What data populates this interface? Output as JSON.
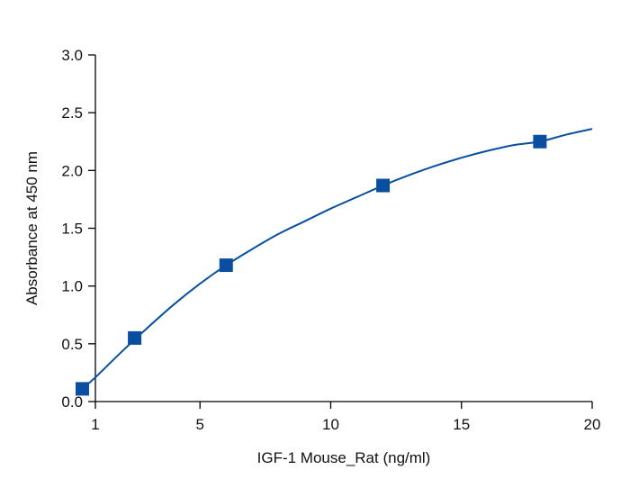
{
  "chart_data": {
    "type": "scatter",
    "title": "",
    "xlabel": "IGF-1 Mouse_Rat (ng/ml)",
    "ylabel": "Absorbance at 450 nm",
    "xlim": [
      1,
      20
    ],
    "ylim": [
      0,
      3.0
    ],
    "xticks": [
      1,
      5,
      10,
      15,
      20
    ],
    "yticks": [
      0.0,
      0.5,
      1.0,
      1.5,
      2.0,
      2.5,
      3.0
    ],
    "xtick_labels": [
      "1",
      "5",
      "10",
      "15",
      "20"
    ],
    "ytick_labels": [
      "0.0",
      "0.5",
      "1.0",
      "1.5",
      "2.0",
      "2.5",
      "3.0"
    ],
    "grid": false,
    "legend": "none",
    "marker_color": "#0a4f9f",
    "line_color": "#0a4f9f",
    "series": [
      {
        "marker": "square",
        "x": [
          0.5,
          2.5,
          6.0,
          12.0,
          18.0
        ],
        "y": [
          0.11,
          0.55,
          1.18,
          1.87,
          2.25
        ]
      }
    ],
    "fit_curve": {
      "x": [
        0.5,
        1,
        2,
        3,
        4,
        5,
        6,
        7,
        8,
        9,
        10,
        11,
        12,
        13,
        14,
        15,
        16,
        17,
        18,
        19,
        20
      ],
      "y": [
        0.11,
        0.21,
        0.43,
        0.64,
        0.84,
        1.02,
        1.18,
        1.32,
        1.45,
        1.56,
        1.67,
        1.77,
        1.87,
        1.96,
        2.04,
        2.11,
        2.17,
        2.22,
        2.25,
        2.31,
        2.36
      ]
    }
  }
}
